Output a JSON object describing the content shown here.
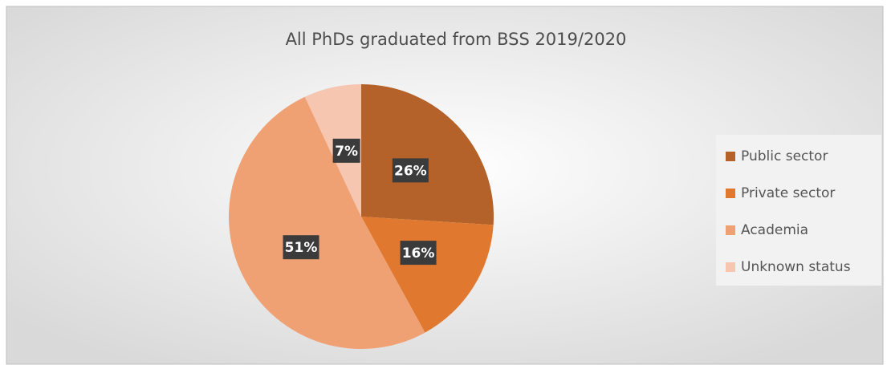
{
  "chart_data": {
    "type": "pie",
    "title": "All PhDs graduated from BSS 2019/2020",
    "categories": [
      "Public sector",
      "Private sector",
      "Academia",
      "Unknown status"
    ],
    "values": [
      26,
      16,
      51,
      7
    ],
    "value_labels": [
      "26%",
      "16%",
      "51%",
      "7%"
    ],
    "colors": [
      "#b5612a",
      "#e0792f",
      "#f0a174",
      "#f6c6b1"
    ],
    "legend": "right"
  }
}
